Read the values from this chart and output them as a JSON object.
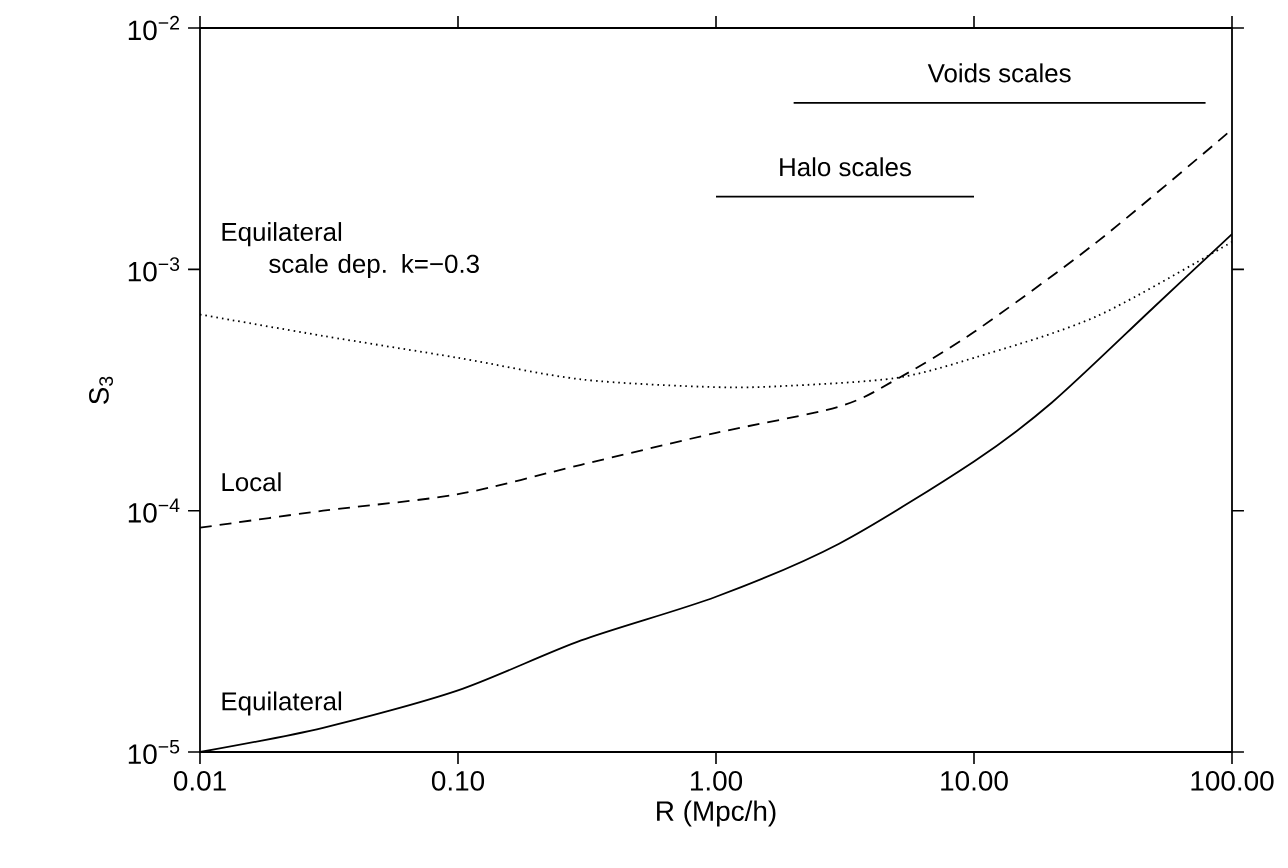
{
  "chart_data": {
    "type": "line",
    "xlabel": "R (Mpc/h)",
    "ylabel": "S$_{3}$",
    "log": "xy",
    "grid": false,
    "legend": false,
    "xlim": [
      0.01,
      100
    ],
    "ylim": [
      1e-05,
      0.01
    ],
    "xticks": [
      {
        "value": 0.01,
        "label": "0.01"
      },
      {
        "value": 0.1,
        "label": "0.10"
      },
      {
        "value": 1,
        "label": "1.00"
      },
      {
        "value": 10,
        "label": "10.00"
      },
      {
        "value": 100,
        "label": "100.00"
      }
    ],
    "yticks": [
      {
        "value": 1e-05,
        "label": "10$^{−5}$"
      },
      {
        "value": 0.0001,
        "label": "10$^{−4}$"
      },
      {
        "value": 0.001,
        "label": "10$^{−3}$"
      },
      {
        "value": 0.01,
        "label": "10$^{−2}$"
      }
    ],
    "series": [
      {
        "name": "Equilateral",
        "color": "#000000",
        "line_style": "solid",
        "x": [
          0.01,
          0.03,
          0.1,
          0.3,
          1,
          3,
          10,
          20,
          50,
          100
        ],
        "values": [
          1e-05,
          1.26e-05,
          1.8e-05,
          2.9e-05,
          4.4e-05,
          7.3e-05,
          0.00016,
          0.00028,
          0.0007,
          0.0014
        ]
      },
      {
        "name": "Local",
        "color": "#000000",
        "line_style": "dashed",
        "x": [
          0.01,
          0.03,
          0.1,
          0.3,
          1,
          3,
          5,
          10,
          30,
          100
        ],
        "values": [
          8.5e-05,
          0.0001,
          0.000117,
          0.000155,
          0.00021,
          0.00027,
          0.00035,
          0.00055,
          0.0013,
          0.0038
        ]
      },
      {
        "name": "Equilateral scale dep. k=−0.3",
        "color": "#000000",
        "line_style": "dotted",
        "x": [
          0.01,
          0.03,
          0.1,
          0.3,
          1,
          2,
          5,
          10,
          30,
          100
        ],
        "values": [
          0.00065,
          0.00053,
          0.00043,
          0.00035,
          0.000325,
          0.00033,
          0.000355,
          0.00043,
          0.00064,
          0.0013
        ]
      },
      {
        "name": "Voids scales",
        "color": "#000000",
        "line_style": "solid",
        "x": [
          2,
          79
        ],
        "values": [
          0.0049,
          0.0049
        ]
      },
      {
        "name": "Halo scales",
        "color": "#000000",
        "line_style": "solid",
        "x": [
          1,
          10
        ],
        "values": [
          0.002,
          0.002
        ]
      }
    ]
  }
}
